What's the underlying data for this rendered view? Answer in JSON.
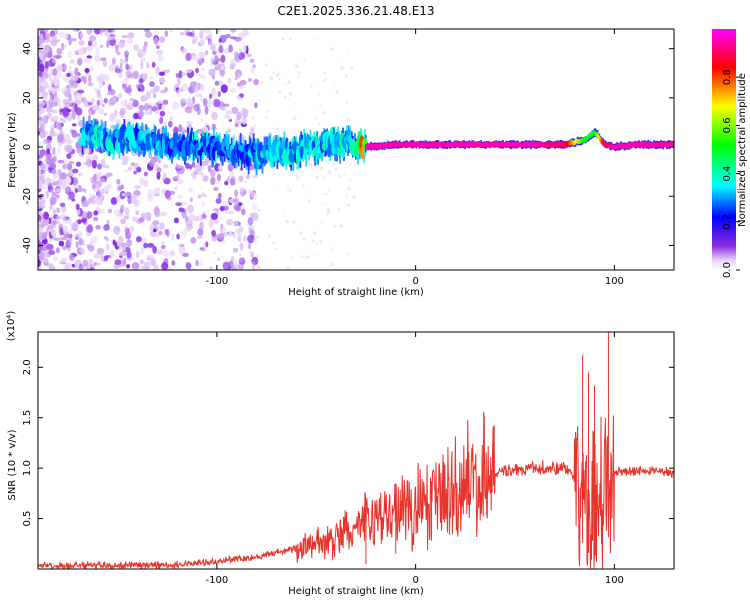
{
  "figure_title": "C2E1.2025.336.21.48.E13",
  "chart_data": [
    {
      "type": "heatmap",
      "name": "spectrogram",
      "xlabel": "Height of straight line (km)",
      "ylabel": "Frequency (Hz)",
      "xlim": [
        -190,
        130
      ],
      "ylim": [
        -50,
        48
      ],
      "xticks": [
        -100,
        0,
        100
      ],
      "xtick_labels": [
        "-100",
        "0",
        "100"
      ],
      "yticks": [
        -40,
        -20,
        0,
        20,
        40
      ],
      "ytick_labels": [
        "-40",
        "-20",
        "0",
        "20",
        "40"
      ],
      "colorbar": {
        "label": "Normalized spectral amplitude",
        "range": [
          0,
          1
        ],
        "ticks": [
          0.0,
          0.2,
          0.4,
          0.6,
          0.8
        ],
        "tick_labels": [
          "0.0",
          "0.2",
          "0.4",
          "0.6",
          "0.8"
        ],
        "colormap": [
          "#ffffff",
          "#e8d5f7",
          "#8a2be2",
          "#0000ff",
          "#00ffff",
          "#00ff00",
          "#ffff00",
          "#ff0000",
          "#ff00ff"
        ]
      },
      "dominant_band": {
        "x": [
          -165,
          -140,
          -120,
          -100,
          -80,
          -60,
          -40,
          -30,
          -25,
          -10,
          0,
          20,
          40,
          60,
          75,
          85,
          90,
          95,
          100,
          110,
          130
        ],
        "center_freq_hz": [
          4,
          3,
          1,
          0,
          -3,
          -2,
          2,
          1,
          0,
          1,
          1,
          1,
          1,
          1,
          1,
          3,
          6,
          1,
          0,
          1,
          1
        ],
        "amplitude": [
          0.4,
          0.35,
          0.3,
          0.3,
          0.35,
          0.4,
          0.4,
          0.45,
          0.95,
          0.95,
          0.95,
          0.95,
          0.95,
          0.95,
          0.9,
          0.5,
          0.5,
          0.9,
          0.95,
          0.95,
          0.95
        ]
      }
    },
    {
      "type": "line",
      "name": "snr",
      "xlabel": "Height of straight line (km)",
      "ylabel": "SNR (10 * v/v)",
      "scale_label": "(x10⁴)",
      "color": "#e8332a",
      "xlim": [
        -190,
        130
      ],
      "ylim": [
        0,
        2.35
      ],
      "xticks": [
        -100,
        0,
        100
      ],
      "xtick_labels": [
        "-100",
        "0",
        "100"
      ],
      "yticks": [
        0.5,
        1.0,
        1.5,
        2.0
      ],
      "ytick_labels": [
        "0.5",
        "1.0",
        "1.5",
        "2.0"
      ],
      "envelope": {
        "x": [
          -190,
          -120,
          -100,
          -80,
          -60,
          -50,
          -40,
          -30,
          -20,
          -10,
          0,
          10,
          20,
          40,
          60,
          75,
          80,
          85,
          90,
          95,
          98,
          100,
          110,
          130
        ],
        "y": [
          0.03,
          0.04,
          0.08,
          0.12,
          0.2,
          0.25,
          0.3,
          0.4,
          0.5,
          0.55,
          0.6,
          0.7,
          0.8,
          0.95,
          1.0,
          1.0,
          0.9,
          0.6,
          0.5,
          0.55,
          0.8,
          0.95,
          0.97,
          0.96
        ]
      },
      "peaks": [
        {
          "x": -25,
          "y": 0.55
        },
        {
          "x": -10,
          "y": 0.85
        },
        {
          "x": 8,
          "y": 0.87
        },
        {
          "x": 84,
          "y": 2.12
        },
        {
          "x": 87,
          "y": 1.95
        },
        {
          "x": 90,
          "y": 1.82
        },
        {
          "x": 97,
          "y": 2.35
        }
      ]
    }
  ]
}
